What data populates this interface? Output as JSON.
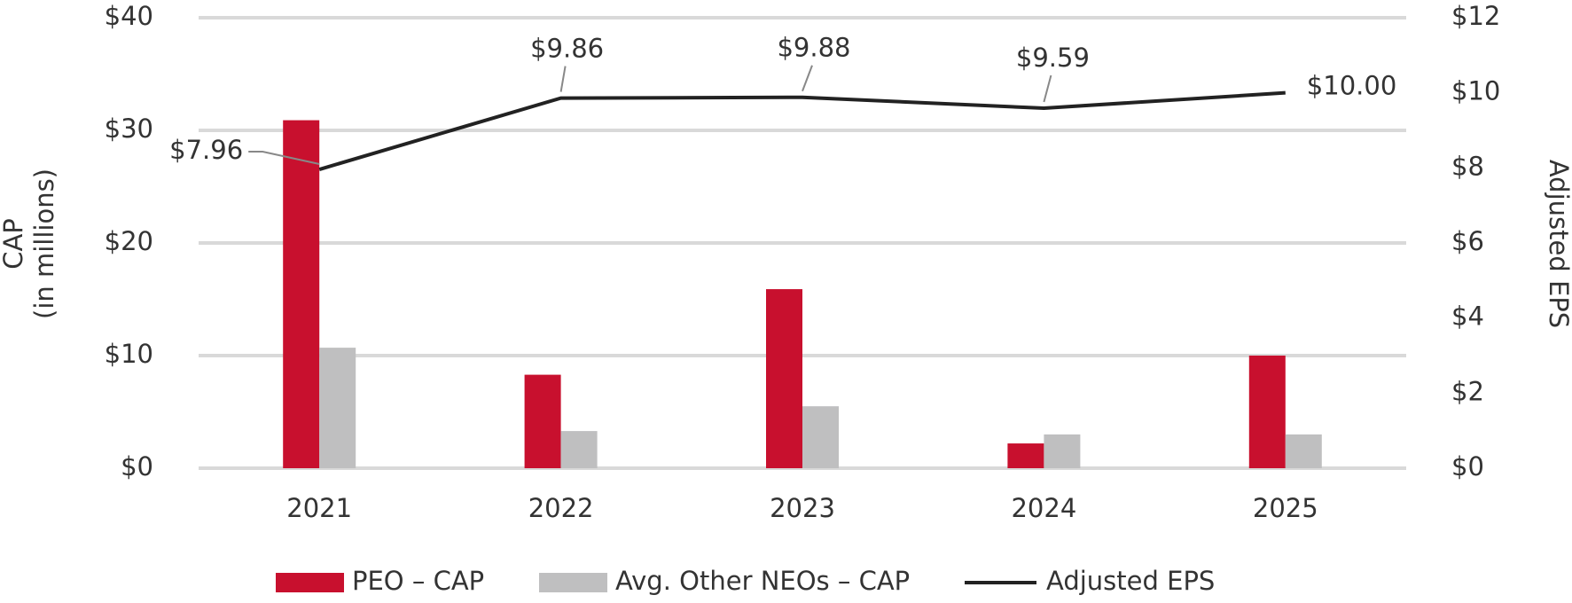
{
  "chart_data": {
    "type": "bar",
    "categories": [
      "2021",
      "2022",
      "2023",
      "2024",
      "2025"
    ],
    "series": [
      {
        "name": "PEO – CAP",
        "color": "#c8102e",
        "values": [
          30.9,
          8.3,
          15.9,
          2.2,
          10.0
        ]
      },
      {
        "name": "Avg. Other NEOs – CAP",
        "color": "#bfbfc0",
        "values": [
          10.7,
          3.3,
          5.5,
          3.0,
          3.0
        ]
      },
      {
        "name": "Adjusted EPS",
        "color": "#222222",
        "type": "line",
        "axis": "y2",
        "values": [
          7.96,
          9.86,
          9.88,
          9.59,
          10.0
        ],
        "value_labels": [
          "$7.96",
          "$9.86",
          "$9.88",
          "$9.59",
          "$10.00"
        ]
      }
    ],
    "y_label": [
      "CAP",
      "(in millions)"
    ],
    "y2_label": "Adjusted EPS",
    "ylim": [
      0,
      40
    ],
    "yticks": [
      {
        "value": 0,
        "label": "$0"
      },
      {
        "value": 10,
        "label": "$10"
      },
      {
        "value": 20,
        "label": "$20"
      },
      {
        "value": 30,
        "label": "$30"
      },
      {
        "value": 40,
        "label": "$40"
      }
    ],
    "y2lim": [
      0,
      12
    ],
    "y2ticks": [
      {
        "value": 0,
        "label": "$0"
      },
      {
        "value": 2,
        "label": "$2"
      },
      {
        "value": 4,
        "label": "$4"
      },
      {
        "value": 6,
        "label": "$6"
      },
      {
        "value": 8,
        "label": "$8"
      },
      {
        "value": 10,
        "label": "$10"
      },
      {
        "value": 12,
        "label": "$12"
      }
    ],
    "grid": true,
    "legend": "bottom"
  }
}
